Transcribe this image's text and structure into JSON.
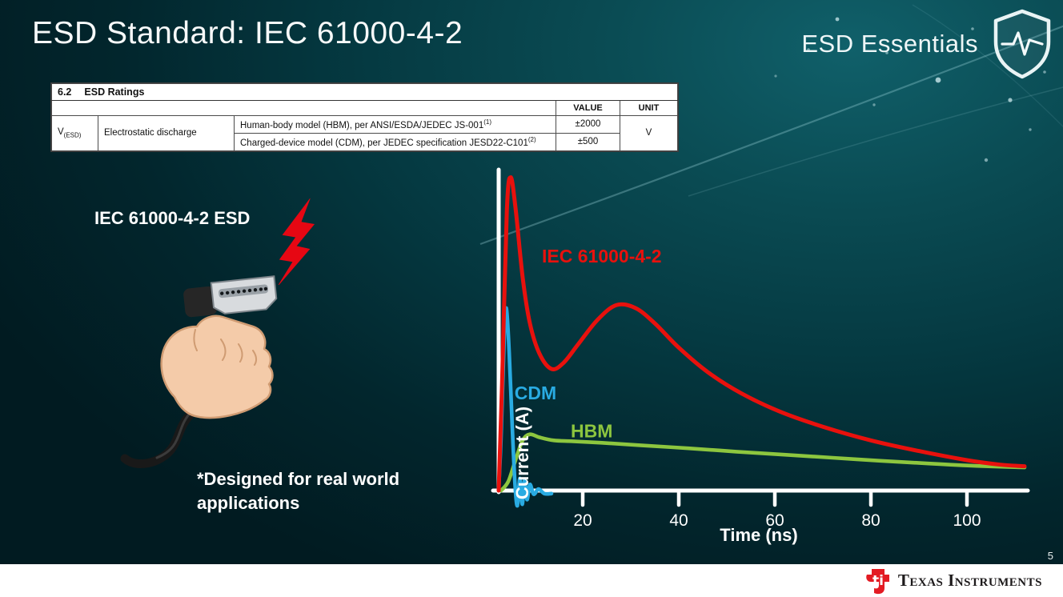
{
  "slide": {
    "title": "ESD Standard: IEC 61000-4-2",
    "brand": "ESD Essentials",
    "page_number": "5"
  },
  "ratings_table": {
    "section_number": "6.2",
    "section_title": "ESD Ratings",
    "col_value": "VALUE",
    "col_unit": "UNIT",
    "param_symbol": "V",
    "param_symbol_sub": "(ESD)",
    "param_name": "Electrostatic discharge",
    "rows": [
      {
        "description": "Human-body model (HBM), per ANSI/ESDA/JEDEC JS-001",
        "description_sup": "(1)",
        "value": "±2000"
      },
      {
        "description": "Charged-device model (CDM), per JEDEC specification JESD22-C101",
        "description_sup": "(2)",
        "value": "±500"
      }
    ],
    "unit": "V"
  },
  "illustration": {
    "label": "IEC 61000-4-2 ESD",
    "note": "*Designed for real world applications",
    "icons": [
      "lightning-bolt-icon",
      "hand-holding-hdmi-illustration",
      "shield-pulse-icon"
    ]
  },
  "chart_data": {
    "type": "line",
    "title": "",
    "xlabel": "Time (ns)",
    "ylabel": "Current (A)",
    "x_ticks": [
      20,
      40,
      60,
      80,
      100
    ],
    "xlim": [
      0,
      113
    ],
    "ylim": [
      -0.06,
      1.1
    ],
    "grid": false,
    "legend_position": "inline-labels",
    "series": [
      {
        "name": "IEC 61000-4-2",
        "color": "#e8110d",
        "label_pos": [
          11.5,
          0.75
        ],
        "points": [
          [
            2.5,
            0
          ],
          [
            3.2,
            0.35
          ],
          [
            4.2,
            0.92
          ],
          [
            5,
            1.03
          ],
          [
            6,
            0.93
          ],
          [
            7.5,
            0.7
          ],
          [
            9,
            0.55
          ],
          [
            11,
            0.45
          ],
          [
            13.5,
            0.4
          ],
          [
            16,
            0.42
          ],
          [
            19,
            0.48
          ],
          [
            23,
            0.56
          ],
          [
            27,
            0.61
          ],
          [
            31,
            0.6
          ],
          [
            35,
            0.55
          ],
          [
            40,
            0.47
          ],
          [
            46,
            0.39
          ],
          [
            53,
            0.32
          ],
          [
            61,
            0.26
          ],
          [
            70,
            0.21
          ],
          [
            80,
            0.165
          ],
          [
            90,
            0.13
          ],
          [
            100,
            0.1
          ],
          [
            107,
            0.085
          ],
          [
            112,
            0.08
          ]
        ]
      },
      {
        "name": "CDM",
        "color": "#29abe2",
        "label_pos": [
          5.8,
          0.3
        ],
        "points": [
          [
            2.5,
            0
          ],
          [
            3,
            0.18
          ],
          [
            3.6,
            0.48
          ],
          [
            4.1,
            0.6
          ],
          [
            4.7,
            0.45
          ],
          [
            5.3,
            0.22
          ],
          [
            5.9,
            0.02
          ],
          [
            6.4,
            -0.05
          ],
          [
            6.9,
            0.04
          ],
          [
            7.4,
            -0.045
          ],
          [
            7.9,
            0.035
          ],
          [
            8.4,
            -0.03
          ],
          [
            9,
            0.02
          ],
          [
            9.8,
            -0.012
          ],
          [
            10.8,
            0.005
          ],
          [
            12,
            -0.01
          ],
          [
            13.5,
            -0.01
          ]
        ]
      },
      {
        "name": "HBM",
        "color": "#8dc63f",
        "label_pos": [
          17.5,
          0.175
        ],
        "points": [
          [
            3,
            0
          ],
          [
            4.5,
            0.03
          ],
          [
            6,
            0.1
          ],
          [
            7.5,
            0.165
          ],
          [
            9,
            0.185
          ],
          [
            11,
            0.175
          ],
          [
            14,
            0.165
          ],
          [
            18,
            0.162
          ],
          [
            24,
            0.157
          ],
          [
            32,
            0.149
          ],
          [
            42,
            0.139
          ],
          [
            52,
            0.128
          ],
          [
            62,
            0.118
          ],
          [
            72,
            0.108
          ],
          [
            82,
            0.098
          ],
          [
            92,
            0.089
          ],
          [
            102,
            0.081
          ],
          [
            112,
            0.076
          ]
        ]
      }
    ]
  },
  "footer": {
    "brand": "Texas Instruments"
  }
}
